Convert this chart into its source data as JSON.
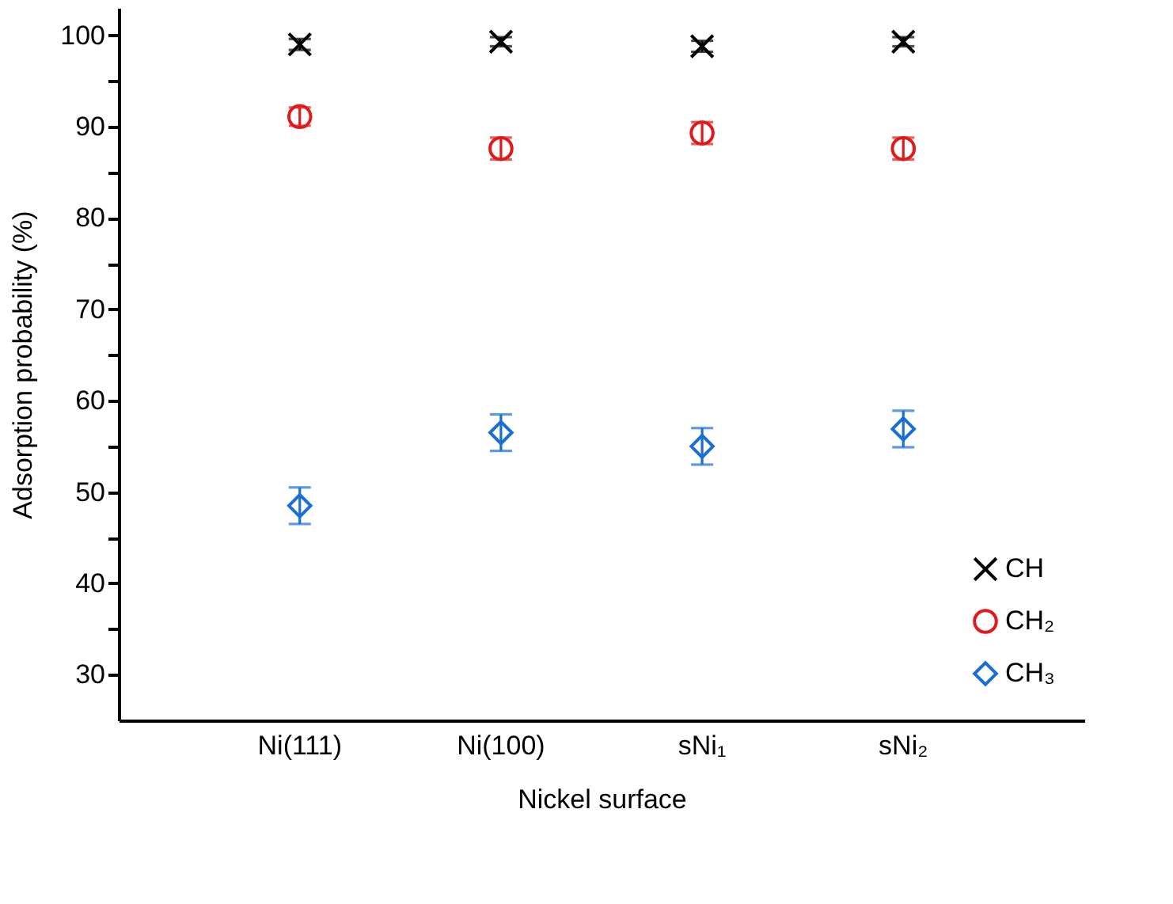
{
  "chart_data": {
    "type": "scatter",
    "xlabel": "Nickel surface",
    "ylabel": "Adsorption probability (%)",
    "categories": [
      "Ni(111)",
      "Ni(100)",
      "sNi₁",
      "sNi₂"
    ],
    "series": [
      {
        "name": "CH",
        "color": "#000000",
        "marker": "cross",
        "values": [
          99.0,
          99.3,
          98.8,
          99.3
        ],
        "errors": [
          0.6,
          0.5,
          0.6,
          0.5
        ]
      },
      {
        "name": "CH₂",
        "color": "#e0191b",
        "marker": "circle",
        "values": [
          91.1,
          87.6,
          89.3,
          87.6
        ],
        "errors": [
          1.0,
          1.2,
          1.2,
          1.2
        ]
      },
      {
        "name": "CH₃",
        "color": "#1a6fd4",
        "marker": "diamond",
        "values": [
          48.5,
          56.5,
          55.0,
          56.9
        ],
        "errors": [
          2.0,
          2.0,
          2.0,
          2.0
        ]
      }
    ],
    "ylim": [
      25,
      103
    ],
    "yticks": [
      30,
      {
        "value": 35,
        "label": null
      },
      40,
      {
        "value": 45,
        "label": null
      },
      50,
      {
        "value": 55,
        "label": null
      },
      60,
      {
        "value": 65,
        "label": null
      },
      70,
      {
        "value": 75,
        "label": null
      },
      80,
      {
        "value": 85,
        "label": null
      },
      90,
      {
        "value": 95,
        "label": null
      },
      100
    ],
    "grid": false,
    "legend": "bottom right"
  }
}
